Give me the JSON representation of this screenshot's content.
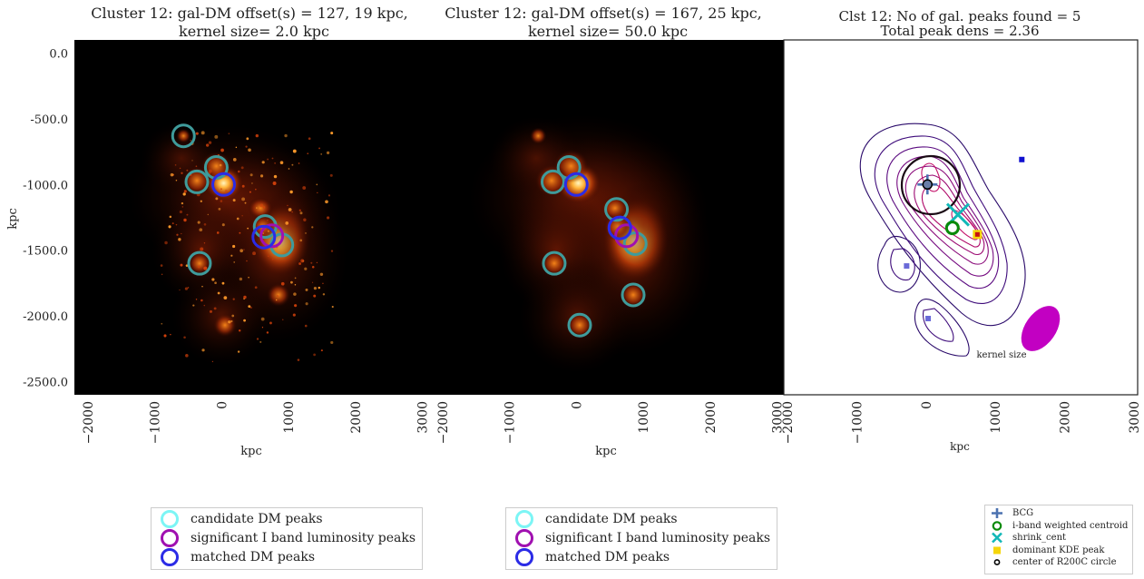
{
  "chart_data": [
    {
      "type": "heatmap",
      "title": "Cluster 12: gal-DM offset(s) = 127, 19 kpc,",
      "subtitle": "kernel size= 2.0 kpc",
      "xlabel": "kpc",
      "ylabel": "kpc",
      "xlim": [
        -2200,
        3100
      ],
      "ylim": [
        -2600,
        100
      ],
      "xticks": [
        "−2000",
        "−1000",
        "0",
        "1000",
        "2000",
        "3000"
      ],
      "yticks": [
        "0.0",
        "-500.0",
        "-1000.0",
        "-1500.0",
        "-2000.0",
        "-2500.0"
      ],
      "series": [
        {
          "name": "candidate DM peaks",
          "color": "#3f9b9b",
          "points": [
            [
              -570,
              -630
            ],
            [
              -370,
              -980
            ],
            [
              -80,
              -870
            ],
            [
              650,
              -1320
            ],
            [
              900,
              -1460
            ],
            [
              -330,
              -1600
            ]
          ]
        },
        {
          "name": "significant I band luminosity peaks",
          "color": "#a010b0",
          "points": [
            [
              750,
              -1390
            ]
          ]
        },
        {
          "name": "matched DM peaks",
          "color": "#2b2be6",
          "points": [
            [
              30,
              -1000
            ],
            [
              630,
              -1400
            ]
          ]
        }
      ]
    },
    {
      "type": "heatmap",
      "title": "Cluster 12: gal-DM offset(s) = 167, 25 kpc,",
      "subtitle": "kernel size= 50.0 kpc",
      "xlabel": "kpc",
      "xlim": [
        -2200,
        3100
      ],
      "xticks": [
        "−2000",
        "−1000",
        "0",
        "1000",
        "2000",
        "3000"
      ],
      "series": [
        {
          "name": "candidate DM peaks",
          "color": "#3f9b9b",
          "points": [
            [
              -350,
              -980
            ],
            [
              -110,
              -870
            ],
            [
              600,
              -1190
            ],
            [
              880,
              -1450
            ],
            [
              -330,
              -1600
            ],
            [
              850,
              -1840
            ],
            [
              50,
              -2070
            ]
          ]
        },
        {
          "name": "significant I band luminosity peaks",
          "color": "#a010b0",
          "points": [
            [
              750,
              -1390
            ]
          ]
        },
        {
          "name": "matched DM peaks",
          "color": "#2b2be6",
          "points": [
            [
              0,
              -1000
            ],
            [
              650,
              -1330
            ]
          ]
        }
      ]
    },
    {
      "type": "contour",
      "title": "Clst 12: No of gal. peaks found = 5",
      "subtitle": "Total peak dens = 2.36",
      "xlabel": "kpc",
      "xlim": [
        -2000,
        3000
      ],
      "xticks": [
        "−2000",
        "−1000",
        "0",
        "1000",
        "2000",
        "3000"
      ],
      "annotation": "kernel size",
      "markers": {
        "BCG": [
          20,
          -1000
        ],
        "i_band_weighted_centroid": [
          380,
          -1330
        ],
        "shrink_cent": [
          460,
          -1230
        ],
        "dominant_KDE_peak": [
          740,
          -1380
        ],
        "center_of_R200C_circle": [
          20,
          -1000
        ],
        "galaxy_peaks": [
          [
            1380,
            -810
          ],
          [
            -280,
            -1620
          ],
          [
            30,
            -2020
          ]
        ]
      }
    }
  ],
  "legend_main": [
    {
      "label": "candidate DM peaks",
      "color": "#7cf5f5"
    },
    {
      "label": "significant I band luminosity peaks",
      "color": "#a010b0"
    },
    {
      "label": "matched DM peaks",
      "color": "#2b2be6"
    }
  ],
  "legend_markers": [
    {
      "label": "BCG",
      "symbol": "plus",
      "color": "#4c72b0"
    },
    {
      "label": "i-band weighted centroid",
      "symbol": "ring",
      "color": "#0a8a0a"
    },
    {
      "label": "shrink_cent",
      "symbol": "x",
      "color": "#12b8b8"
    },
    {
      "label": "dominant KDE peak",
      "symbol": "square",
      "color": "#f5d60a"
    },
    {
      "label": "center of R200C circle",
      "symbol": "small-ring",
      "color": "#000000"
    }
  ]
}
